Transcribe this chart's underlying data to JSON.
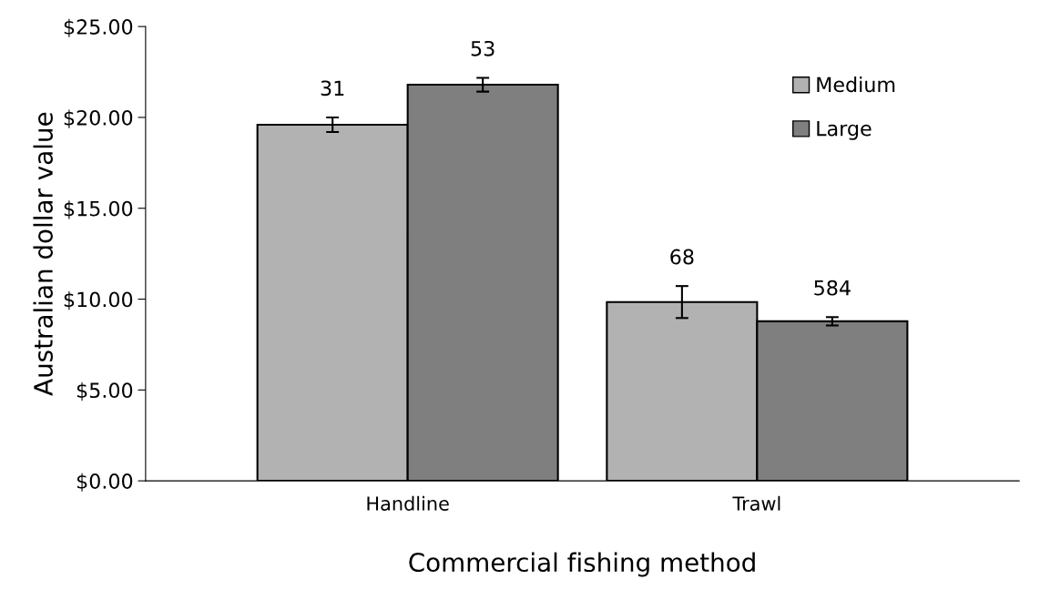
{
  "chart_data": {
    "type": "bar",
    "xlabel": "Commercial fishing method",
    "ylabel": "Australian dollar value",
    "categories": [
      "Handline",
      "Trawl"
    ],
    "series": [
      {
        "name": "Medium",
        "color": "#b2b2b2",
        "values": [
          19.6,
          9.84
        ],
        "errors": [
          0.4,
          0.88
        ]
      },
      {
        "name": "Large",
        "color": "#7f7f7f",
        "values": [
          21.8,
          8.78
        ],
        "errors": [
          0.38,
          0.23
        ]
      }
    ],
    "annotations": [
      "31",
      "53",
      "68",
      "584"
    ],
    "ylim": [
      0,
      25
    ],
    "yticks": [
      {
        "value": 0,
        "label": "$0.00"
      },
      {
        "value": 5,
        "label": "$5.00"
      },
      {
        "value": 10,
        "label": "$10.00"
      },
      {
        "value": 15,
        "label": "$15.00"
      },
      {
        "value": 20,
        "label": "$20.00"
      },
      {
        "value": 25,
        "label": "$25.00"
      }
    ],
    "grid": false,
    "legend": "top right"
  }
}
